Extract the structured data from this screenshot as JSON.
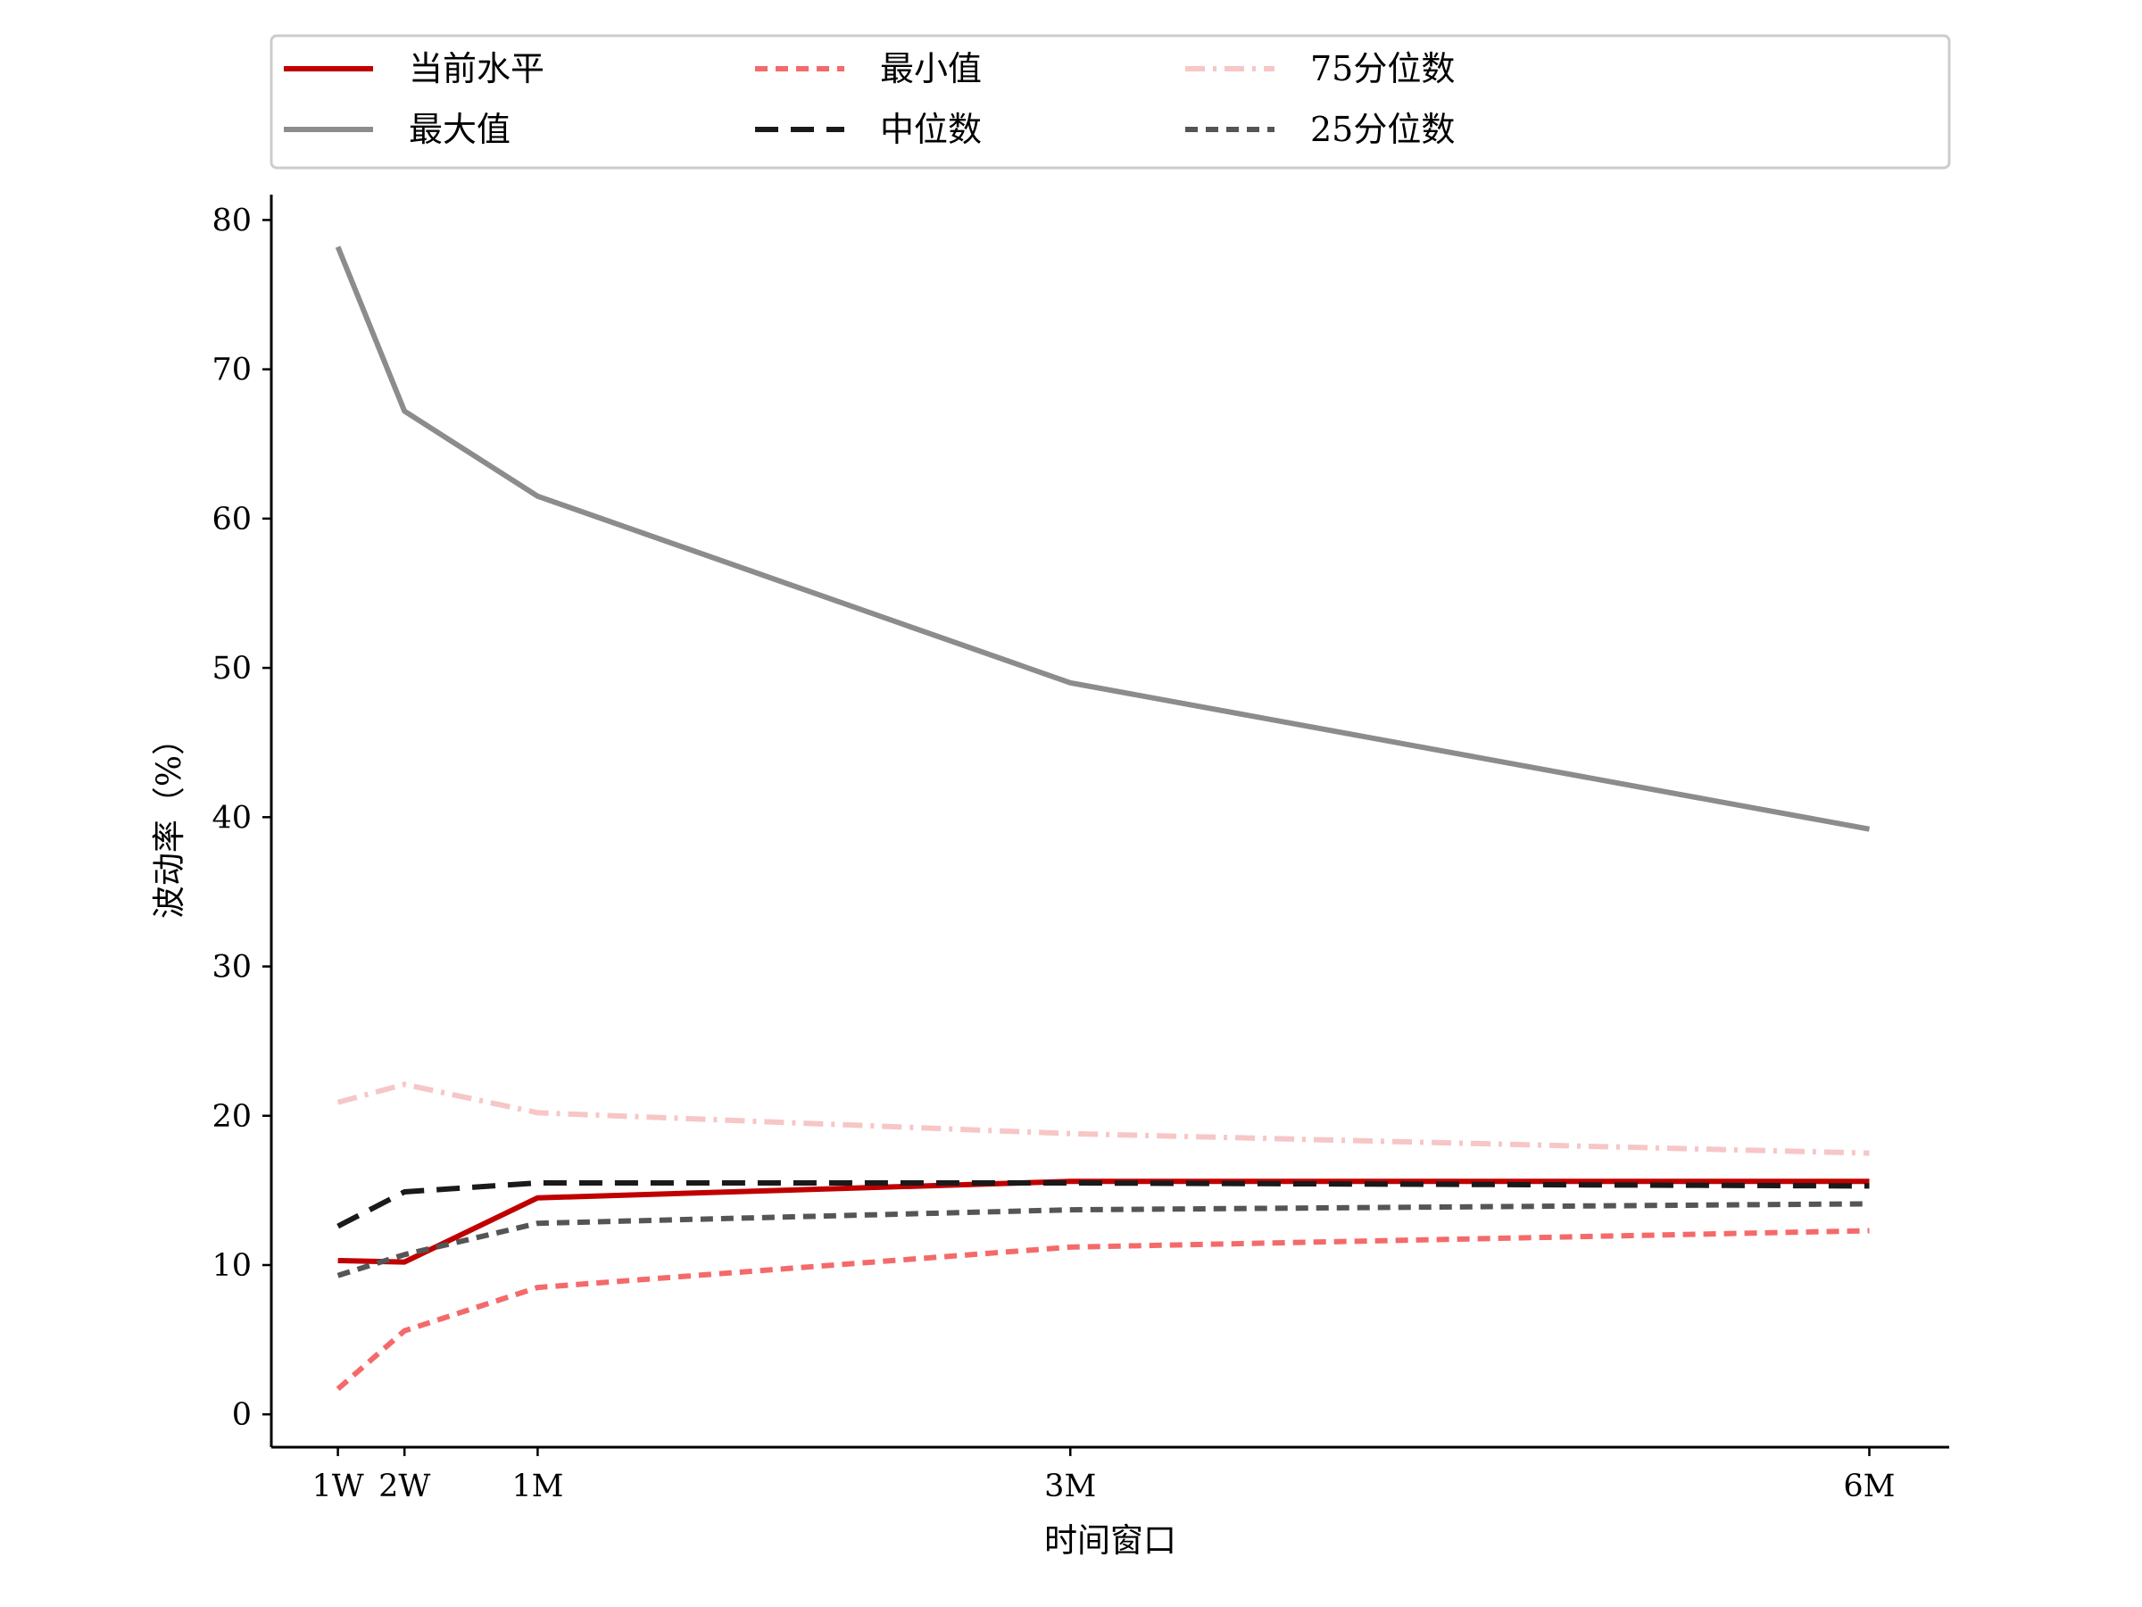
{
  "chart_data": {
    "type": "line",
    "xlabel": "时间窗口",
    "ylabel": "波动率（%）",
    "x_ticks": [
      {
        "label": "1W",
        "x": 5
      },
      {
        "label": "2W",
        "x": 10
      },
      {
        "label": "1M",
        "x": 20
      },
      {
        "label": "3M",
        "x": 60
      },
      {
        "label": "6M",
        "x": 120
      }
    ],
    "y_ticks": [
      0,
      10,
      20,
      30,
      40,
      50,
      60,
      70,
      80
    ],
    "xlim": [
      0,
      126
    ],
    "ylim": [
      -2.2,
      81.7
    ],
    "grid": false,
    "legend_position": "top",
    "x": [
      5,
      10,
      20,
      60,
      120
    ],
    "series": [
      {
        "name": "当前水平",
        "color": "#c00000",
        "style": "solid",
        "values": [
          10.3,
          10.2,
          14.5,
          15.6,
          15.6
        ]
      },
      {
        "name": "最大值",
        "color": "#8c8c8c",
        "style": "solid",
        "values": [
          78.2,
          67.2,
          61.5,
          49.0,
          39.2
        ]
      },
      {
        "name": "最小值",
        "color": "#f46a6a",
        "style": "dashed",
        "values": [
          1.7,
          5.6,
          8.5,
          11.2,
          12.3
        ]
      },
      {
        "name": "中位数",
        "color": "#1a1a1a",
        "style": "longdash",
        "values": [
          12.6,
          14.9,
          15.5,
          15.5,
          15.3
        ]
      },
      {
        "name": "75分位数",
        "color": "#f7c6c6",
        "style": "dashdot",
        "values": [
          20.9,
          22.1,
          20.2,
          18.8,
          17.5
        ]
      },
      {
        "name": "25分位数",
        "color": "#555555",
        "style": "dashed",
        "values": [
          9.3,
          10.7,
          12.8,
          13.7,
          14.1
        ]
      }
    ]
  }
}
